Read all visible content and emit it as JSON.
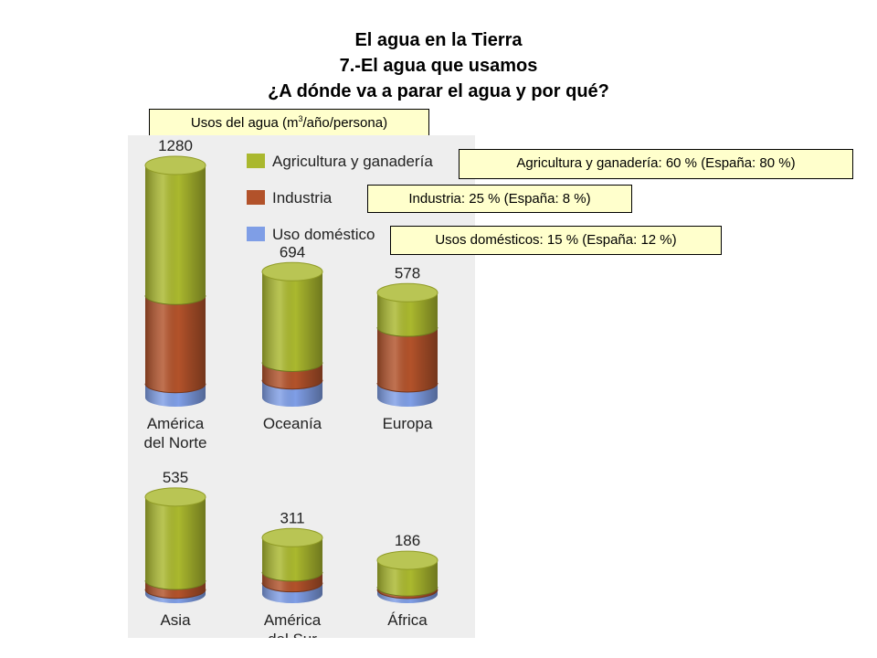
{
  "header": {
    "line1": "El agua en la Tierra",
    "line2": "7.-El agua que usamos",
    "line3": "¿A dónde va a parar el agua y por qué?"
  },
  "chart_label": {
    "prefix": "Usos del agua (m",
    "sup": "3",
    "suffix": "/año/persona)"
  },
  "notes": {
    "agriculture": "Agricultura y ganadería: 60 % (España: 80 %)",
    "industry": "Industria: 25 % (España: 8 %)",
    "domestic": "Usos domésticos: 15 % (España: 12 %)"
  },
  "chart_data": {
    "type": "bar",
    "stacked": true,
    "unit": "m3/año/persona",
    "series_colors": {
      "agricultura": "#aab82e",
      "industria": "#b2522a",
      "domestico": "#7f9ee6"
    },
    "legend": [
      {
        "key": "agricultura",
        "label": "Agricultura y ganadería"
      },
      {
        "key": "industria",
        "label": "Industria"
      },
      {
        "key": "domestico",
        "label": "Uso doméstico"
      }
    ],
    "regions": [
      {
        "name_lines": [
          "América",
          "del Norte"
        ],
        "total": 1280,
        "agricultura": 0.56,
        "industria": 0.38,
        "domestico": 0.06
      },
      {
        "name_lines": [
          "Oceanía"
        ],
        "total": 694,
        "agricultura": 0.72,
        "industria": 0.14,
        "domestico": 0.14
      },
      {
        "name_lines": [
          "Europa"
        ],
        "total": 578,
        "agricultura": 0.33,
        "industria": 0.53,
        "domestico": 0.14
      },
      {
        "name_lines": [
          "Asia"
        ],
        "total": 535,
        "agricultura": 0.86,
        "industria": 0.09,
        "domestico": 0.05
      },
      {
        "name_lines": [
          "América",
          "del Sur"
        ],
        "total": 311,
        "agricultura": 0.61,
        "industria": 0.19,
        "domestico": 0.2
      },
      {
        "name_lines": [
          "África"
        ],
        "total": 186,
        "agricultura": 0.79,
        "industria": 0.07,
        "domestico": 0.14
      }
    ]
  }
}
